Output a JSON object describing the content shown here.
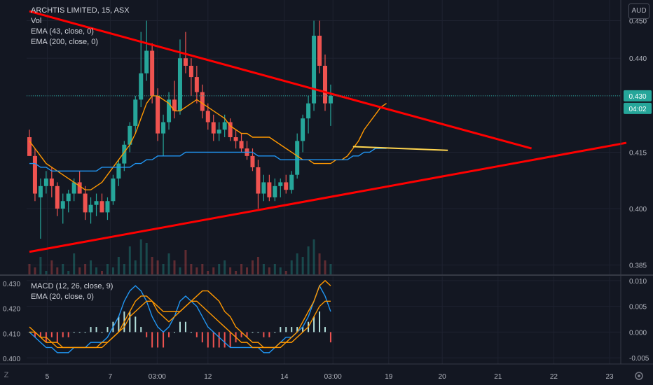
{
  "header": {
    "symbol_line": "ARCHTIS LIMITED, 15, ASX",
    "vol_label": "Vol",
    "ema1_label": "EMA (43, close, 0)",
    "ema2_label": "EMA (200, close, 0)",
    "currency_button": "AUD"
  },
  "indicator": {
    "macd_label": "MACD (12, 26, close, 9)",
    "ema_label": "EMA (20, close, 0)"
  },
  "price_badge": {
    "price": "0.430",
    "countdown": "04:02"
  },
  "bottom_left_icon": "Z",
  "colors": {
    "background": "#131722",
    "up": "#26a69a",
    "down": "#ef5350",
    "ema_fast": "#ff9800",
    "ema_slow": "#2196f3",
    "trendline": "#ff0000",
    "hline": "#ffd54f",
    "price_badge": "#26a69a"
  },
  "chart_data": [
    {
      "type": "candlestick",
      "title": "ARCHTIS LIMITED, 15, ASX",
      "currency": "AUD",
      "ylim": [
        0.3825,
        0.4555
      ],
      "y_ticks": [
        "0.450",
        "0.440",
        "0.430",
        "0.415",
        "0.400",
        "0.385"
      ],
      "y_tick_values": [
        0.45,
        0.44,
        0.43,
        0.415,
        0.4,
        0.385
      ],
      "x_ticks": [
        "5",
        "7",
        "03:00",
        "12",
        "14",
        "03:00",
        "19",
        "20",
        "21",
        "22",
        "23"
      ],
      "x_tick_positions": [
        3.2,
        14.5,
        22.9,
        32.0,
        45.7,
        54.4,
        64.4,
        74.0,
        84.0,
        94.0,
        104.0
      ],
      "x_range": [
        -0.5,
        106
      ],
      "last_price": 0.43,
      "series": [
        {
          "name": "EMA (43, close, 0)",
          "color": "#ff9800",
          "values": [
            0.418,
            0.416,
            0.414,
            0.412,
            0.411,
            0.41,
            0.409,
            0.408,
            0.407,
            0.406,
            0.405,
            0.405,
            0.406,
            0.407,
            0.409,
            0.411,
            0.413,
            0.415,
            0.417,
            0.42,
            0.424,
            0.428,
            0.43,
            0.43,
            0.429,
            0.428,
            0.426,
            0.426,
            0.427,
            0.428,
            0.429,
            0.428,
            0.427,
            0.426,
            0.425,
            0.424,
            0.422,
            0.421,
            0.42,
            0.42,
            0.419,
            0.419,
            0.419,
            0.419,
            0.418,
            0.417,
            0.416,
            0.415,
            0.414,
            0.413,
            0.413,
            0.412,
            0.412,
            0.412,
            0.412,
            0.413,
            0.413,
            0.414,
            0.416,
            0.418,
            0.421,
            0.423,
            0.425,
            0.427,
            0.428
          ]
        },
        {
          "name": "EMA (200, close, 0)",
          "color": "#2196f3",
          "values": [
            0.412,
            0.412,
            0.411,
            0.411,
            0.41,
            0.41,
            0.41,
            0.41,
            0.41,
            0.41,
            0.41,
            0.41,
            0.41,
            0.411,
            0.411,
            0.411,
            0.411,
            0.411,
            0.411,
            0.412,
            0.412,
            0.413,
            0.413,
            0.414,
            0.414,
            0.414,
            0.414,
            0.414,
            0.415,
            0.415,
            0.415,
            0.415,
            0.415,
            0.415,
            0.415,
            0.415,
            0.415,
            0.415,
            0.415,
            0.415,
            0.415,
            0.414,
            0.414,
            0.414,
            0.414,
            0.413,
            0.413,
            0.413,
            0.413,
            0.413,
            0.413,
            0.413,
            0.413,
            0.413,
            0.413,
            0.413,
            0.413,
            0.413,
            0.414,
            0.414,
            0.415,
            0.415,
            0.416,
            0.416,
            0.416
          ]
        }
      ],
      "candles_ohlc": [
        [
          0.419,
          0.421,
          0.414,
          0.414
        ],
        [
          0.414,
          0.416,
          0.402,
          0.404
        ],
        [
          0.403,
          0.408,
          0.392,
          0.406
        ],
        [
          0.406,
          0.41,
          0.404,
          0.408
        ],
        [
          0.408,
          0.411,
          0.403,
          0.406
        ],
        [
          0.406,
          0.407,
          0.398,
          0.4
        ],
        [
          0.4,
          0.404,
          0.396,
          0.402
        ],
        [
          0.402,
          0.405,
          0.399,
          0.404
        ],
        [
          0.404,
          0.408,
          0.402,
          0.407
        ],
        [
          0.407,
          0.41,
          0.404,
          0.404
        ],
        [
          0.404,
          0.406,
          0.397,
          0.399
        ],
        [
          0.399,
          0.403,
          0.396,
          0.401
        ],
        [
          0.401,
          0.404,
          0.398,
          0.402
        ],
        [
          0.402,
          0.404,
          0.399,
          0.399
        ],
        [
          0.399,
          0.403,
          0.397,
          0.402
        ],
        [
          0.402,
          0.409,
          0.401,
          0.408
        ],
        [
          0.408,
          0.413,
          0.406,
          0.412
        ],
        [
          0.412,
          0.418,
          0.41,
          0.417
        ],
        [
          0.417,
          0.423,
          0.415,
          0.422
        ],
        [
          0.422,
          0.43,
          0.42,
          0.429
        ],
        [
          0.429,
          0.447,
          0.427,
          0.436
        ],
        [
          0.436,
          0.45,
          0.434,
          0.442
        ],
        [
          0.442,
          0.444,
          0.428,
          0.43
        ],
        [
          0.43,
          0.432,
          0.418,
          0.42
        ],
        [
          0.42,
          0.425,
          0.414,
          0.423
        ],
        [
          0.423,
          0.431,
          0.421,
          0.429
        ],
        [
          0.429,
          0.434,
          0.424,
          0.426
        ],
        [
          0.426,
          0.445,
          0.425,
          0.44
        ],
        [
          0.44,
          0.447,
          0.436,
          0.438
        ],
        [
          0.438,
          0.44,
          0.43,
          0.435
        ],
        [
          0.435,
          0.438,
          0.428,
          0.431
        ],
        [
          0.431,
          0.433,
          0.424,
          0.426
        ],
        [
          0.426,
          0.428,
          0.421,
          0.423
        ],
        [
          0.423,
          0.425,
          0.418,
          0.42
        ],
        [
          0.42,
          0.423,
          0.418,
          0.421
        ],
        [
          0.421,
          0.425,
          0.419,
          0.423
        ],
        [
          0.423,
          0.424,
          0.418,
          0.419
        ],
        [
          0.419,
          0.421,
          0.416,
          0.418
        ],
        [
          0.418,
          0.42,
          0.415,
          0.416
        ],
        [
          0.416,
          0.418,
          0.413,
          0.414
        ],
        [
          0.414,
          0.416,
          0.41,
          0.411
        ],
        [
          0.411,
          0.413,
          0.4,
          0.404
        ],
        [
          0.404,
          0.409,
          0.402,
          0.407
        ],
        [
          0.407,
          0.409,
          0.402,
          0.403
        ],
        [
          0.403,
          0.408,
          0.402,
          0.406
        ],
        [
          0.406,
          0.408,
          0.403,
          0.407
        ],
        [
          0.407,
          0.409,
          0.404,
          0.405
        ],
        [
          0.405,
          0.41,
          0.404,
          0.409
        ],
        [
          0.409,
          0.42,
          0.408,
          0.418
        ],
        [
          0.418,
          0.425,
          0.415,
          0.424
        ],
        [
          0.424,
          0.43,
          0.42,
          0.428
        ],
        [
          0.428,
          0.45,
          0.426,
          0.446
        ],
        [
          0.446,
          0.45,
          0.436,
          0.438
        ],
        [
          0.438,
          0.441,
          0.426,
          0.428
        ],
        [
          0.428,
          0.433,
          0.422,
          0.43
        ]
      ],
      "volume": [
        0.3,
        0.2,
        0.5,
        0.1,
        0.4,
        0.2,
        0.3,
        0.1,
        0.6,
        0.2,
        0.3,
        0.4,
        0.2,
        0.1,
        0.3,
        0.2,
        0.5,
        0.3,
        0.8,
        0.4,
        1.0,
        0.9,
        0.5,
        0.4,
        0.3,
        0.6,
        0.4,
        0.2,
        0.7,
        0.3,
        0.2,
        0.3,
        0.1,
        0.2,
        0.3,
        0.4,
        0.2,
        0.1,
        0.3,
        0.2,
        0.4,
        0.5,
        0.3,
        0.2,
        0.3,
        0.2,
        0.1,
        0.4,
        0.6,
        0.5,
        0.8,
        1.0,
        0.6,
        0.4,
        0.3
      ],
      "trendlines": [
        {
          "from": [
            0,
            0.4525
          ],
          "to": [
            90,
            0.416
          ],
          "color": "#ff0000"
        },
        {
          "from": [
            0,
            0.3885
          ],
          "to": [
            107,
            0.4175
          ],
          "color": "#ff0000"
        },
        {
          "from": [
            58,
            0.4165
          ],
          "to": [
            75,
            0.4155
          ],
          "color": "#ffd54f"
        }
      ]
    },
    {
      "type": "line",
      "title": "MACD (12, 26, close, 9)",
      "left_y_ticks": [
        "0.430",
        "0.420",
        "0.410",
        "0.400"
      ],
      "left_ylim": [
        0.3985,
        0.4315
      ],
      "right_y_ticks": [
        "0.010",
        "0.005",
        "0.000",
        "-0.005"
      ],
      "right_y_tick_values": [
        0.01,
        0.005,
        0.0,
        -0.005
      ],
      "ylim": [
        -0.0062,
        0.0108
      ],
      "series": [
        {
          "name": "MACD",
          "color": "#2196f3",
          "values": [
            0.0,
            -0.001,
            -0.002,
            -0.003,
            -0.003,
            -0.004,
            -0.004,
            -0.004,
            -0.003,
            -0.003,
            -0.003,
            -0.002,
            -0.002,
            -0.002,
            -0.001,
            0.001,
            0.003,
            0.006,
            0.008,
            0.009,
            0.008,
            0.006,
            0.003,
            0.001,
            0.0,
            0.001,
            0.003,
            0.006,
            0.007,
            0.006,
            0.005,
            0.003,
            0.001,
            0.0,
            -0.001,
            -0.002,
            -0.003,
            -0.003,
            -0.003,
            -0.003,
            -0.003,
            -0.003,
            -0.004,
            -0.004,
            -0.003,
            -0.002,
            -0.001,
            -0.001,
            0.0,
            0.001,
            0.003,
            0.006,
            0.009,
            0.007,
            0.004
          ]
        },
        {
          "name": "Signal",
          "color": "#ff9800",
          "values": [
            0.0,
            0.0,
            -0.001,
            -0.001,
            -0.002,
            -0.002,
            -0.003,
            -0.003,
            -0.003,
            -0.003,
            -0.003,
            -0.003,
            -0.003,
            -0.002,
            -0.002,
            -0.001,
            0.0,
            0.002,
            0.004,
            0.006,
            0.007,
            0.007,
            0.006,
            0.004,
            0.003,
            0.002,
            0.003,
            0.004,
            0.005,
            0.006,
            0.006,
            0.005,
            0.004,
            0.003,
            0.002,
            0.001,
            0.0,
            -0.001,
            -0.002,
            -0.002,
            -0.003,
            -0.003,
            -0.003,
            -0.003,
            -0.003,
            -0.003,
            -0.002,
            -0.002,
            -0.001,
            0.0,
            0.001,
            0.003,
            0.005,
            0.006,
            0.006
          ]
        },
        {
          "name": "EMA (20, close, 0)",
          "color": "#ff9800",
          "values": [
            0.001,
            0.0,
            -0.001,
            -0.002,
            -0.002,
            -0.003,
            -0.003,
            -0.003,
            -0.003,
            -0.003,
            -0.003,
            -0.003,
            -0.003,
            -0.003,
            -0.002,
            -0.001,
            0.0,
            0.001,
            0.003,
            0.004,
            0.005,
            0.006,
            0.006,
            0.005,
            0.004,
            0.004,
            0.004,
            0.004,
            0.005,
            0.006,
            0.007,
            0.008,
            0.008,
            0.007,
            0.006,
            0.004,
            0.003,
            0.001,
            0.0,
            -0.001,
            -0.002,
            -0.002,
            -0.003,
            -0.003,
            -0.003,
            -0.002,
            -0.002,
            -0.001,
            0.0,
            0.002,
            0.004,
            0.006,
            0.009,
            0.01,
            0.009
          ]
        }
      ]
    }
  ]
}
